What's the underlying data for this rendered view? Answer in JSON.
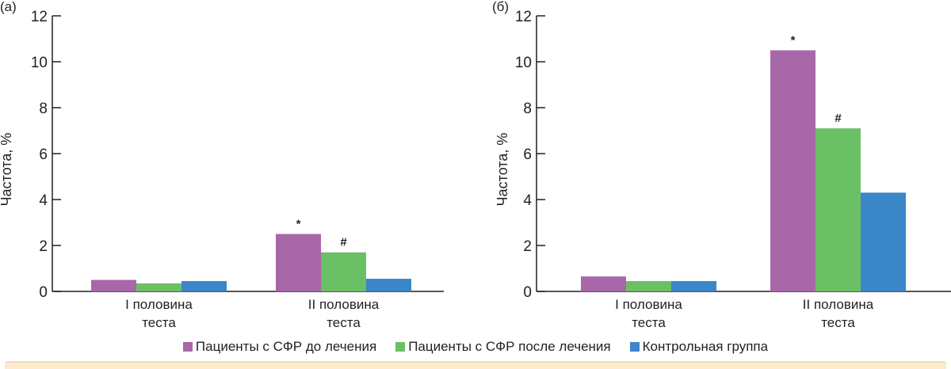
{
  "chart_data": [
    {
      "type": "bar",
      "panel": "(а)",
      "categories": [
        [
          "I половина",
          "теста"
        ],
        [
          "II половина",
          "теста"
        ]
      ],
      "series": [
        {
          "name": "Пациенты с СФР до лечения",
          "values": [
            0.5,
            2.5
          ],
          "color": "#a867a8",
          "annotations": [
            "",
            "*"
          ]
        },
        {
          "name": "Пациенты с СФР после лечения",
          "values": [
            0.35,
            1.7
          ],
          "color": "#6bbf65",
          "annotations": [
            "",
            "#"
          ]
        },
        {
          "name": "Контрольная группа",
          "values": [
            0.45,
            0.55
          ],
          "color": "#3a86c8",
          "annotations": [
            "",
            ""
          ]
        }
      ],
      "ylabel": "Частота, %",
      "ylim": [
        0,
        12
      ],
      "yticks": [
        0,
        2,
        4,
        6,
        8,
        10,
        12
      ],
      "grid": false
    },
    {
      "type": "bar",
      "panel": "(б)",
      "categories": [
        [
          "I половина",
          "теста"
        ],
        [
          "II половина",
          "теста"
        ]
      ],
      "series": [
        {
          "name": "Пациенты с СФР до лечения",
          "values": [
            0.65,
            10.5
          ],
          "color": "#a867a8",
          "annotations": [
            "",
            "*"
          ]
        },
        {
          "name": "Пациенты с СФР после лечения",
          "values": [
            0.45,
            7.1
          ],
          "color": "#6bbf65",
          "annotations": [
            "",
            "#"
          ]
        },
        {
          "name": "Контрольная группа",
          "values": [
            0.45,
            4.3
          ],
          "color": "#3a86c8",
          "annotations": [
            "",
            ""
          ]
        }
      ],
      "ylabel": "Частота, %",
      "ylim": [
        0,
        12
      ],
      "yticks": [
        0,
        2,
        4,
        6,
        8,
        10,
        12
      ],
      "grid": false
    }
  ],
  "legend": {
    "placement": "bottom",
    "items": [
      {
        "label": "Пациенты с СФР до лечения",
        "color": "#a867a8"
      },
      {
        "label": "Пациенты с СФР после лечения",
        "color": "#6bbf65"
      },
      {
        "label": "Контрольная группа",
        "color": "#3a86c8"
      }
    ]
  }
}
